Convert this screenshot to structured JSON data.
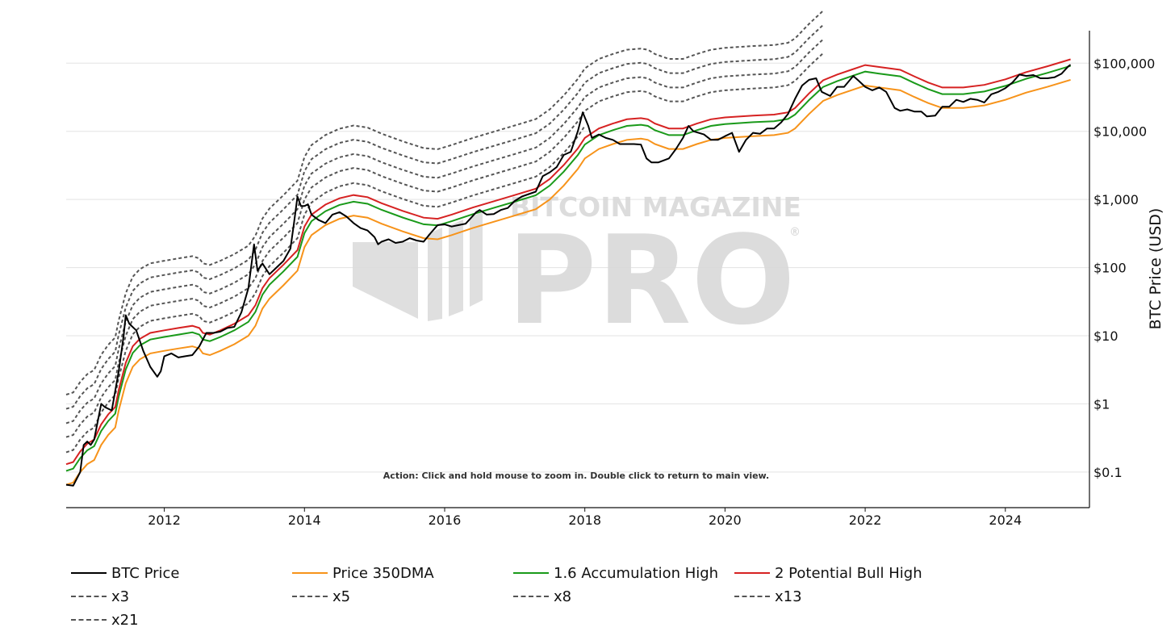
{
  "interaction_hint": "Action: Click and hold mouse to zoom in.  Double click to return to main view.",
  "watermark": {
    "top": "BITCOIN MAGAZINE",
    "main": "PRO",
    "mark": "®"
  },
  "chart_data": {
    "type": "line",
    "y_scale": "log",
    "ylabel": "BTC Price (USD)",
    "ylim": [
      0.03,
      300000
    ],
    "xlim": [
      2010.6,
      2025.2
    ],
    "x_ticks": [
      {
        "value": 2012,
        "label": "2012"
      },
      {
        "value": 2014,
        "label": "2014"
      },
      {
        "value": 2016,
        "label": "2016"
      },
      {
        "value": 2018,
        "label": "2018"
      },
      {
        "value": 2020,
        "label": "2020"
      },
      {
        "value": 2022,
        "label": "2022"
      },
      {
        "value": 2024,
        "label": "2024"
      }
    ],
    "y_ticks": [
      {
        "value": 0.1,
        "label": "$0.1"
      },
      {
        "value": 1,
        "label": "$1"
      },
      {
        "value": 10,
        "label": "$10"
      },
      {
        "value": 100,
        "label": "$100"
      },
      {
        "value": 1000,
        "label": "$1,000"
      },
      {
        "value": 10000,
        "label": "$10,000"
      },
      {
        "value": 100000,
        "label": "$100,000"
      }
    ],
    "grid": "horizontal",
    "legend_position": "bottom",
    "btc_price": [
      [
        2010.6,
        0.065
      ],
      [
        2010.7,
        0.063
      ],
      [
        2010.8,
        0.1
      ],
      [
        2010.85,
        0.25
      ],
      [
        2010.9,
        0.28
      ],
      [
        2010.95,
        0.25
      ],
      [
        2011.0,
        0.3
      ],
      [
        2011.1,
        1.0
      ],
      [
        2011.15,
        0.9
      ],
      [
        2011.25,
        0.8
      ],
      [
        2011.35,
        3.0
      ],
      [
        2011.42,
        10
      ],
      [
        2011.45,
        20
      ],
      [
        2011.5,
        15
      ],
      [
        2011.6,
        12
      ],
      [
        2011.7,
        6
      ],
      [
        2011.8,
        3.5
      ],
      [
        2011.9,
        2.5
      ],
      [
        2011.95,
        3
      ],
      [
        2012.0,
        5
      ],
      [
        2012.1,
        5.5
      ],
      [
        2012.2,
        4.8
      ],
      [
        2012.3,
        5
      ],
      [
        2012.4,
        5.2
      ],
      [
        2012.5,
        7
      ],
      [
        2012.6,
        11
      ],
      [
        2012.7,
        11
      ],
      [
        2012.8,
        11.5
      ],
      [
        2012.9,
        13
      ],
      [
        2013.0,
        13.5
      ],
      [
        2013.1,
        22
      ],
      [
        2013.2,
        50
      ],
      [
        2013.28,
        220
      ],
      [
        2013.33,
        90
      ],
      [
        2013.4,
        115
      ],
      [
        2013.5,
        80
      ],
      [
        2013.6,
        100
      ],
      [
        2013.7,
        125
      ],
      [
        2013.8,
        190
      ],
      [
        2013.85,
        450
      ],
      [
        2013.9,
        1100
      ],
      [
        2013.95,
        800
      ],
      [
        2014.0,
        800
      ],
      [
        2014.05,
        850
      ],
      [
        2014.1,
        600
      ],
      [
        2014.2,
        500
      ],
      [
        2014.3,
        450
      ],
      [
        2014.4,
        600
      ],
      [
        2014.5,
        650
      ],
      [
        2014.6,
        560
      ],
      [
        2014.7,
        450
      ],
      [
        2014.8,
        380
      ],
      [
        2014.9,
        350
      ],
      [
        2015.0,
        280
      ],
      [
        2015.05,
        220
      ],
      [
        2015.1,
        240
      ],
      [
        2015.2,
        260
      ],
      [
        2015.3,
        230
      ],
      [
        2015.4,
        240
      ],
      [
        2015.5,
        270
      ],
      [
        2015.6,
        250
      ],
      [
        2015.7,
        240
      ],
      [
        2015.8,
        320
      ],
      [
        2015.9,
        420
      ],
      [
        2016.0,
        430
      ],
      [
        2016.1,
        400
      ],
      [
        2016.2,
        420
      ],
      [
        2016.3,
        440
      ],
      [
        2016.45,
        650
      ],
      [
        2016.5,
        700
      ],
      [
        2016.6,
        600
      ],
      [
        2016.7,
        610
      ],
      [
        2016.8,
        700
      ],
      [
        2016.9,
        750
      ],
      [
        2017.0,
        950
      ],
      [
        2017.1,
        1100
      ],
      [
        2017.2,
        1200
      ],
      [
        2017.3,
        1300
      ],
      [
        2017.4,
        2200
      ],
      [
        2017.5,
        2500
      ],
      [
        2017.6,
        3000
      ],
      [
        2017.7,
        4500
      ],
      [
        2017.8,
        5000
      ],
      [
        2017.9,
        10000
      ],
      [
        2017.97,
        19000
      ],
      [
        2018.05,
        12000
      ],
      [
        2018.1,
        8000
      ],
      [
        2018.2,
        9000
      ],
      [
        2018.3,
        8000
      ],
      [
        2018.4,
        7500
      ],
      [
        2018.5,
        6500
      ],
      [
        2018.6,
        6500
      ],
      [
        2018.7,
        6500
      ],
      [
        2018.8,
        6400
      ],
      [
        2018.88,
        4000
      ],
      [
        2018.95,
        3500
      ],
      [
        2019.05,
        3500
      ],
      [
        2019.2,
        4000
      ],
      [
        2019.3,
        5500
      ],
      [
        2019.4,
        8000
      ],
      [
        2019.48,
        12000
      ],
      [
        2019.55,
        10000
      ],
      [
        2019.7,
        9000
      ],
      [
        2019.8,
        7500
      ],
      [
        2019.9,
        7500
      ],
      [
        2020.0,
        8500
      ],
      [
        2020.1,
        9500
      ],
      [
        2020.2,
        5000
      ],
      [
        2020.3,
        7500
      ],
      [
        2020.4,
        9500
      ],
      [
        2020.5,
        9200
      ],
      [
        2020.6,
        11000
      ],
      [
        2020.7,
        11000
      ],
      [
        2020.8,
        13500
      ],
      [
        2020.9,
        18000
      ],
      [
        2021.0,
        30000
      ],
      [
        2021.1,
        47000
      ],
      [
        2021.2,
        57000
      ],
      [
        2021.3,
        60000
      ],
      [
        2021.38,
        38000
      ],
      [
        2021.5,
        33000
      ],
      [
        2021.6,
        45000
      ],
      [
        2021.7,
        45000
      ],
      [
        2021.83,
        65000
      ],
      [
        2021.9,
        56000
      ],
      [
        2022.0,
        45000
      ],
      [
        2022.1,
        40000
      ],
      [
        2022.2,
        44000
      ],
      [
        2022.3,
        38000
      ],
      [
        2022.42,
        22000
      ],
      [
        2022.5,
        20000
      ],
      [
        2022.6,
        21000
      ],
      [
        2022.7,
        19500
      ],
      [
        2022.8,
        19500
      ],
      [
        2022.88,
        16500
      ],
      [
        2023.0,
        17000
      ],
      [
        2023.1,
        23000
      ],
      [
        2023.2,
        23000
      ],
      [
        2023.3,
        29000
      ],
      [
        2023.4,
        27000
      ],
      [
        2023.5,
        30000
      ],
      [
        2023.6,
        29000
      ],
      [
        2023.7,
        26500
      ],
      [
        2023.8,
        35000
      ],
      [
        2023.9,
        38000
      ],
      [
        2024.0,
        43000
      ],
      [
        2024.1,
        52000
      ],
      [
        2024.2,
        68000
      ],
      [
        2024.3,
        65000
      ],
      [
        2024.4,
        67000
      ],
      [
        2024.5,
        60000
      ],
      [
        2024.6,
        60000
      ],
      [
        2024.7,
        62000
      ],
      [
        2024.8,
        70000
      ],
      [
        2024.9,
        90000
      ],
      [
        2024.93,
        95000
      ]
    ],
    "dma_350": [
      [
        2010.6,
        0.065
      ],
      [
        2010.7,
        0.07
      ],
      [
        2010.8,
        0.1
      ],
      [
        2010.9,
        0.13
      ],
      [
        2011.0,
        0.15
      ],
      [
        2011.1,
        0.25
      ],
      [
        2011.2,
        0.35
      ],
      [
        2011.3,
        0.45
      ],
      [
        2011.35,
        0.8
      ],
      [
        2011.45,
        2
      ],
      [
        2011.55,
        3.5
      ],
      [
        2011.65,
        4.5
      ],
      [
        2011.8,
        5.5
      ],
      [
        2012.0,
        6
      ],
      [
        2012.2,
        6.5
      ],
      [
        2012.4,
        7
      ],
      [
        2012.5,
        6.5
      ],
      [
        2012.55,
        5.5
      ],
      [
        2012.65,
        5.2
      ],
      [
        2012.8,
        6
      ],
      [
        2013.0,
        7.5
      ],
      [
        2013.2,
        10
      ],
      [
        2013.3,
        14
      ],
      [
        2013.4,
        25
      ],
      [
        2013.5,
        35
      ],
      [
        2013.7,
        55
      ],
      [
        2013.9,
        90
      ],
      [
        2014.0,
        200
      ],
      [
        2014.1,
        300
      ],
      [
        2014.3,
        420
      ],
      [
        2014.5,
        520
      ],
      [
        2014.7,
        580
      ],
      [
        2014.9,
        540
      ],
      [
        2015.1,
        440
      ],
      [
        2015.4,
        340
      ],
      [
        2015.7,
        270
      ],
      [
        2015.9,
        260
      ],
      [
        2016.1,
        300
      ],
      [
        2016.4,
        380
      ],
      [
        2016.7,
        470
      ],
      [
        2017.0,
        580
      ],
      [
        2017.3,
        720
      ],
      [
        2017.5,
        1000
      ],
      [
        2017.7,
        1600
      ],
      [
        2017.9,
        2800
      ],
      [
        2018.0,
        4000
      ],
      [
        2018.2,
        5500
      ],
      [
        2018.4,
        6500
      ],
      [
        2018.6,
        7500
      ],
      [
        2018.8,
        7800
      ],
      [
        2018.9,
        7500
      ],
      [
        2019.0,
        6500
      ],
      [
        2019.2,
        5500
      ],
      [
        2019.4,
        5500
      ],
      [
        2019.6,
        6500
      ],
      [
        2019.8,
        7500
      ],
      [
        2020.0,
        8000
      ],
      [
        2020.4,
        8500
      ],
      [
        2020.7,
        8800
      ],
      [
        2020.9,
        9500
      ],
      [
        2021.0,
        11000
      ],
      [
        2021.2,
        18000
      ],
      [
        2021.4,
        28000
      ],
      [
        2021.6,
        34000
      ],
      [
        2021.8,
        40000
      ],
      [
        2022.0,
        47000
      ],
      [
        2022.2,
        44000
      ],
      [
        2022.5,
        40000
      ],
      [
        2022.7,
        32000
      ],
      [
        2022.9,
        26000
      ],
      [
        2023.1,
        22000
      ],
      [
        2023.4,
        22000
      ],
      [
        2023.7,
        24000
      ],
      [
        2024.0,
        29000
      ],
      [
        2024.3,
        37000
      ],
      [
        2024.6,
        45000
      ],
      [
        2024.93,
        57000
      ]
    ],
    "multiples": [
      {
        "name": "1.6 Accumulation High",
        "factor": 1.6,
        "color": "#1a9a1a",
        "dash": false
      },
      {
        "name": "2 Potential Bull High",
        "factor": 2,
        "color": "#d62222",
        "dash": false
      },
      {
        "name": "x3",
        "factor": 3,
        "color": "#555555",
        "dash": true,
        "end": 2018.05
      },
      {
        "name": "x5",
        "factor": 5,
        "color": "#555555",
        "dash": true,
        "end": 2021.45
      },
      {
        "name": "x8",
        "factor": 8,
        "color": "#555555",
        "dash": true,
        "end": 2021.45
      },
      {
        "name": "x13",
        "factor": 13,
        "color": "#555555",
        "dash": true,
        "end": 2021.45
      },
      {
        "name": "x21",
        "factor": 21,
        "color": "#555555",
        "dash": true,
        "end": 2021.45
      }
    ],
    "legend": [
      {
        "name": "BTC Price",
        "color": "#000000",
        "dash": false
      },
      {
        "name": "Price 350DMA",
        "color": "#f7931a",
        "dash": false
      },
      {
        "name": "1.6 Accumulation High",
        "color": "#1a9a1a",
        "dash": false
      },
      {
        "name": "2 Potential Bull High",
        "color": "#d62222",
        "dash": false
      },
      {
        "name": "x3",
        "color": "#555555",
        "dash": true
      },
      {
        "name": "x5",
        "color": "#555555",
        "dash": true
      },
      {
        "name": "x8",
        "color": "#555555",
        "dash": true
      },
      {
        "name": "x13",
        "color": "#555555",
        "dash": true
      },
      {
        "name": "x21",
        "color": "#555555",
        "dash": true
      }
    ],
    "colors": {
      "btc": "#000000",
      "dma": "#f7931a",
      "grid": "#e3e3e3",
      "axis": "#111111"
    }
  }
}
